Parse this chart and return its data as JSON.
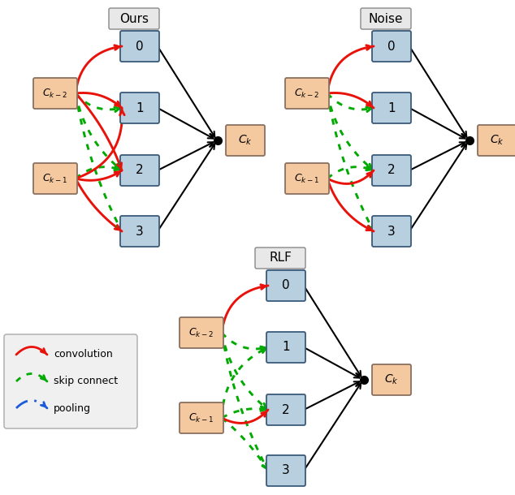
{
  "title_ours": "Ours",
  "title_noise": "Noise",
  "title_rlf": "RLF",
  "node_color_input": "#f5c9a0",
  "node_color_intermediate": "#b8cfe0",
  "node_color_ck": "#f5c9a0",
  "edge_color_conv": "#e8120a",
  "edge_color_skip": "#00aa00",
  "edge_color_pool": "#1a5adb",
  "edge_color_black": "#000000",
  "figsize": [
    6.34,
    6.1
  ],
  "dpi": 100,
  "ours_connections": {
    "conv_from_km2": [
      0,
      1,
      2
    ],
    "conv_from_km1": [
      1,
      2,
      3
    ],
    "skip_from_km2": [
      1,
      2,
      3
    ],
    "skip_from_km1": [
      2
    ]
  },
  "noise_connections": {
    "conv_from_km2": [
      0,
      1
    ],
    "conv_from_km1": [
      2,
      3
    ],
    "skip_from_km2": [
      1,
      2,
      3
    ],
    "skip_from_km1": [
      2
    ]
  },
  "rlf_connections": {
    "conv_from_km2": [
      0
    ],
    "conv_from_km1": [
      2
    ],
    "skip_from_km2": [
      1,
      2,
      3
    ],
    "skip_from_km1": [
      1,
      2,
      3
    ]
  }
}
